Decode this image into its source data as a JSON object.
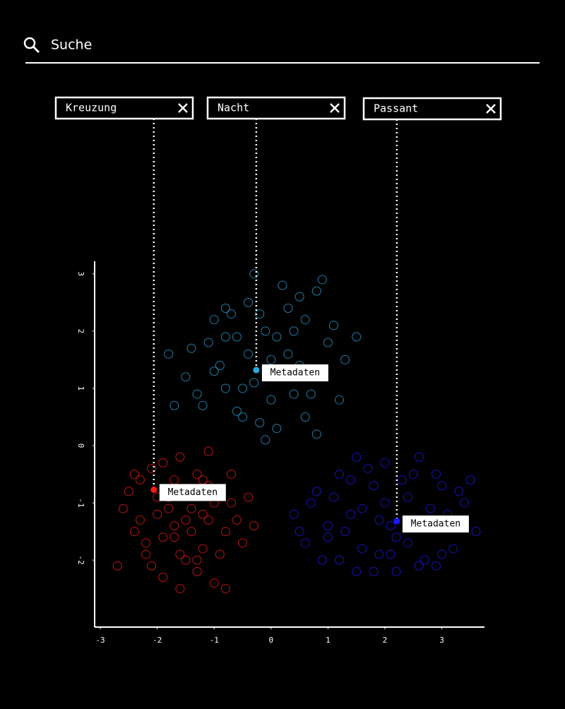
{
  "search": {
    "placeholder": "Suche"
  },
  "tags": [
    "Kreuzung",
    "Nacht",
    "Passant"
  ],
  "chart_data": {
    "type": "scatter",
    "xlim": [
      -3.1,
      3.75
    ],
    "ylim": [
      -3.17,
      3.22
    ],
    "xticks": [
      -3,
      -2,
      -1,
      0,
      1,
      2,
      3
    ],
    "yticks": [
      -2,
      -1,
      0,
      1,
      2,
      3
    ],
    "series": [
      {
        "color": "#ff1a1a",
        "x": [
          -2.6,
          -2.4,
          -2.3,
          -2.2,
          -2.1,
          -2.0,
          -1.9,
          -1.8,
          -1.7,
          -1.6,
          -1.5,
          -1.4,
          -1.3,
          -1.2,
          -1.1,
          -1.0,
          -0.9,
          -0.8,
          -0.7,
          -0.5,
          -2.5,
          -2.3,
          -2.1,
          -1.9,
          -1.7,
          -1.5,
          -1.3,
          -1.1,
          -0.9,
          -0.7,
          -2.2,
          -2.0,
          -1.8,
          -1.6,
          -1.4,
          -1.2,
          -1.0,
          -0.8,
          -0.6,
          -0.4,
          -1.9,
          -1.7,
          -1.5,
          -1.3,
          -1.1,
          -2.4,
          -2.7,
          -0.3,
          -1.6,
          -1.2
        ],
        "y": [
          -1.1,
          -1.5,
          -0.6,
          -1.9,
          -0.4,
          -1.2,
          -2.3,
          -0.9,
          -1.6,
          -0.2,
          -2.0,
          -1.1,
          -0.5,
          -1.8,
          -1.3,
          -2.4,
          -0.8,
          -1.5,
          -1.0,
          -1.7,
          -0.8,
          -1.3,
          -2.1,
          -0.3,
          -1.4,
          -0.8,
          -2.2,
          -0.1,
          -1.9,
          -0.5,
          -1.7,
          -0.9,
          -1.1,
          -1.9,
          -1.5,
          -0.6,
          -1.0,
          -2.5,
          -1.3,
          -0.9,
          -1.6,
          -0.6,
          -1.3,
          -2.0,
          -0.7,
          -0.5,
          -2.1,
          -1.4,
          -2.5,
          -1.2
        ]
      },
      {
        "color": "#29a9e0",
        "x": [
          -1.7,
          -1.5,
          -1.3,
          -1.1,
          -0.9,
          -0.7,
          -0.5,
          -0.3,
          -0.1,
          0.1,
          0.3,
          0.5,
          0.7,
          0.9,
          1.1,
          1.3,
          -1.4,
          -1.2,
          -1.0,
          -0.8,
          -0.6,
          -0.4,
          -0.2,
          0.0,
          0.2,
          0.4,
          0.6,
          0.8,
          1.0,
          1.2,
          -1.0,
          -0.8,
          -0.6,
          -0.4,
          -0.2,
          0.0,
          0.2,
          0.4,
          0.6,
          0.8,
          -0.3,
          -0.1,
          0.1,
          0.3,
          -0.5,
          0.5,
          -0.8,
          1.5,
          -1.8,
          0.9
        ],
        "y": [
          0.7,
          1.2,
          0.9,
          1.8,
          1.4,
          2.3,
          0.5,
          1.1,
          2.0,
          0.3,
          1.6,
          2.6,
          0.9,
          1.3,
          2.1,
          1.5,
          1.7,
          0.7,
          2.2,
          1.0,
          1.9,
          2.5,
          0.4,
          1.5,
          2.8,
          0.9,
          2.2,
          0.2,
          1.8,
          0.8,
          1.3,
          2.4,
          0.6,
          1.6,
          2.3,
          0.8,
          1.2,
          2.0,
          0.5,
          2.7,
          3.0,
          0.1,
          1.9,
          2.4,
          1.0,
          1.4,
          1.9,
          1.9,
          1.6,
          2.9
        ]
      },
      {
        "color": "#1a1aff",
        "x": [
          0.4,
          0.6,
          0.8,
          1.0,
          1.2,
          1.4,
          1.6,
          1.8,
          2.0,
          2.2,
          2.4,
          2.6,
          2.8,
          3.0,
          3.2,
          3.4,
          3.6,
          0.7,
          0.9,
          1.1,
          1.3,
          1.5,
          1.7,
          1.9,
          2.1,
          2.3,
          2.5,
          2.7,
          2.9,
          3.1,
          3.3,
          1.0,
          1.4,
          1.8,
          2.2,
          2.6,
          3.0,
          3.4,
          1.6,
          2.0,
          2.4,
          2.8,
          1.2,
          2.5,
          2.1,
          1.5,
          3.5,
          0.5,
          2.9,
          1.9
        ],
        "y": [
          -1.2,
          -1.7,
          -0.8,
          -1.4,
          -2.0,
          -0.6,
          -1.1,
          -2.2,
          -0.3,
          -1.6,
          -0.9,
          -2.1,
          -1.3,
          -0.7,
          -1.8,
          -1.0,
          -1.5,
          -1.0,
          -2.0,
          -0.9,
          -1.5,
          -2.2,
          -0.4,
          -1.3,
          -1.9,
          -0.6,
          -1.4,
          -2.0,
          -0.5,
          -1.2,
          -0.8,
          -1.6,
          -1.2,
          -0.7,
          -2.2,
          -0.2,
          -1.9,
          -1.3,
          -1.8,
          -1.0,
          -1.7,
          -1.1,
          -0.5,
          -0.5,
          -1.4,
          -0.2,
          -0.6,
          -1.5,
          -2.1,
          -1.9
        ]
      }
    ],
    "annotations": [
      {
        "text": "Metadaten",
        "x": -2.06,
        "y": -0.77,
        "color": "#ff1a1a"
      },
      {
        "text": "Metadaten",
        "x": -0.26,
        "y": 1.32,
        "color": "#29a9e0"
      },
      {
        "text": "Metadaten",
        "x": 2.21,
        "y": -1.32,
        "color": "#1a1aff"
      }
    ]
  }
}
